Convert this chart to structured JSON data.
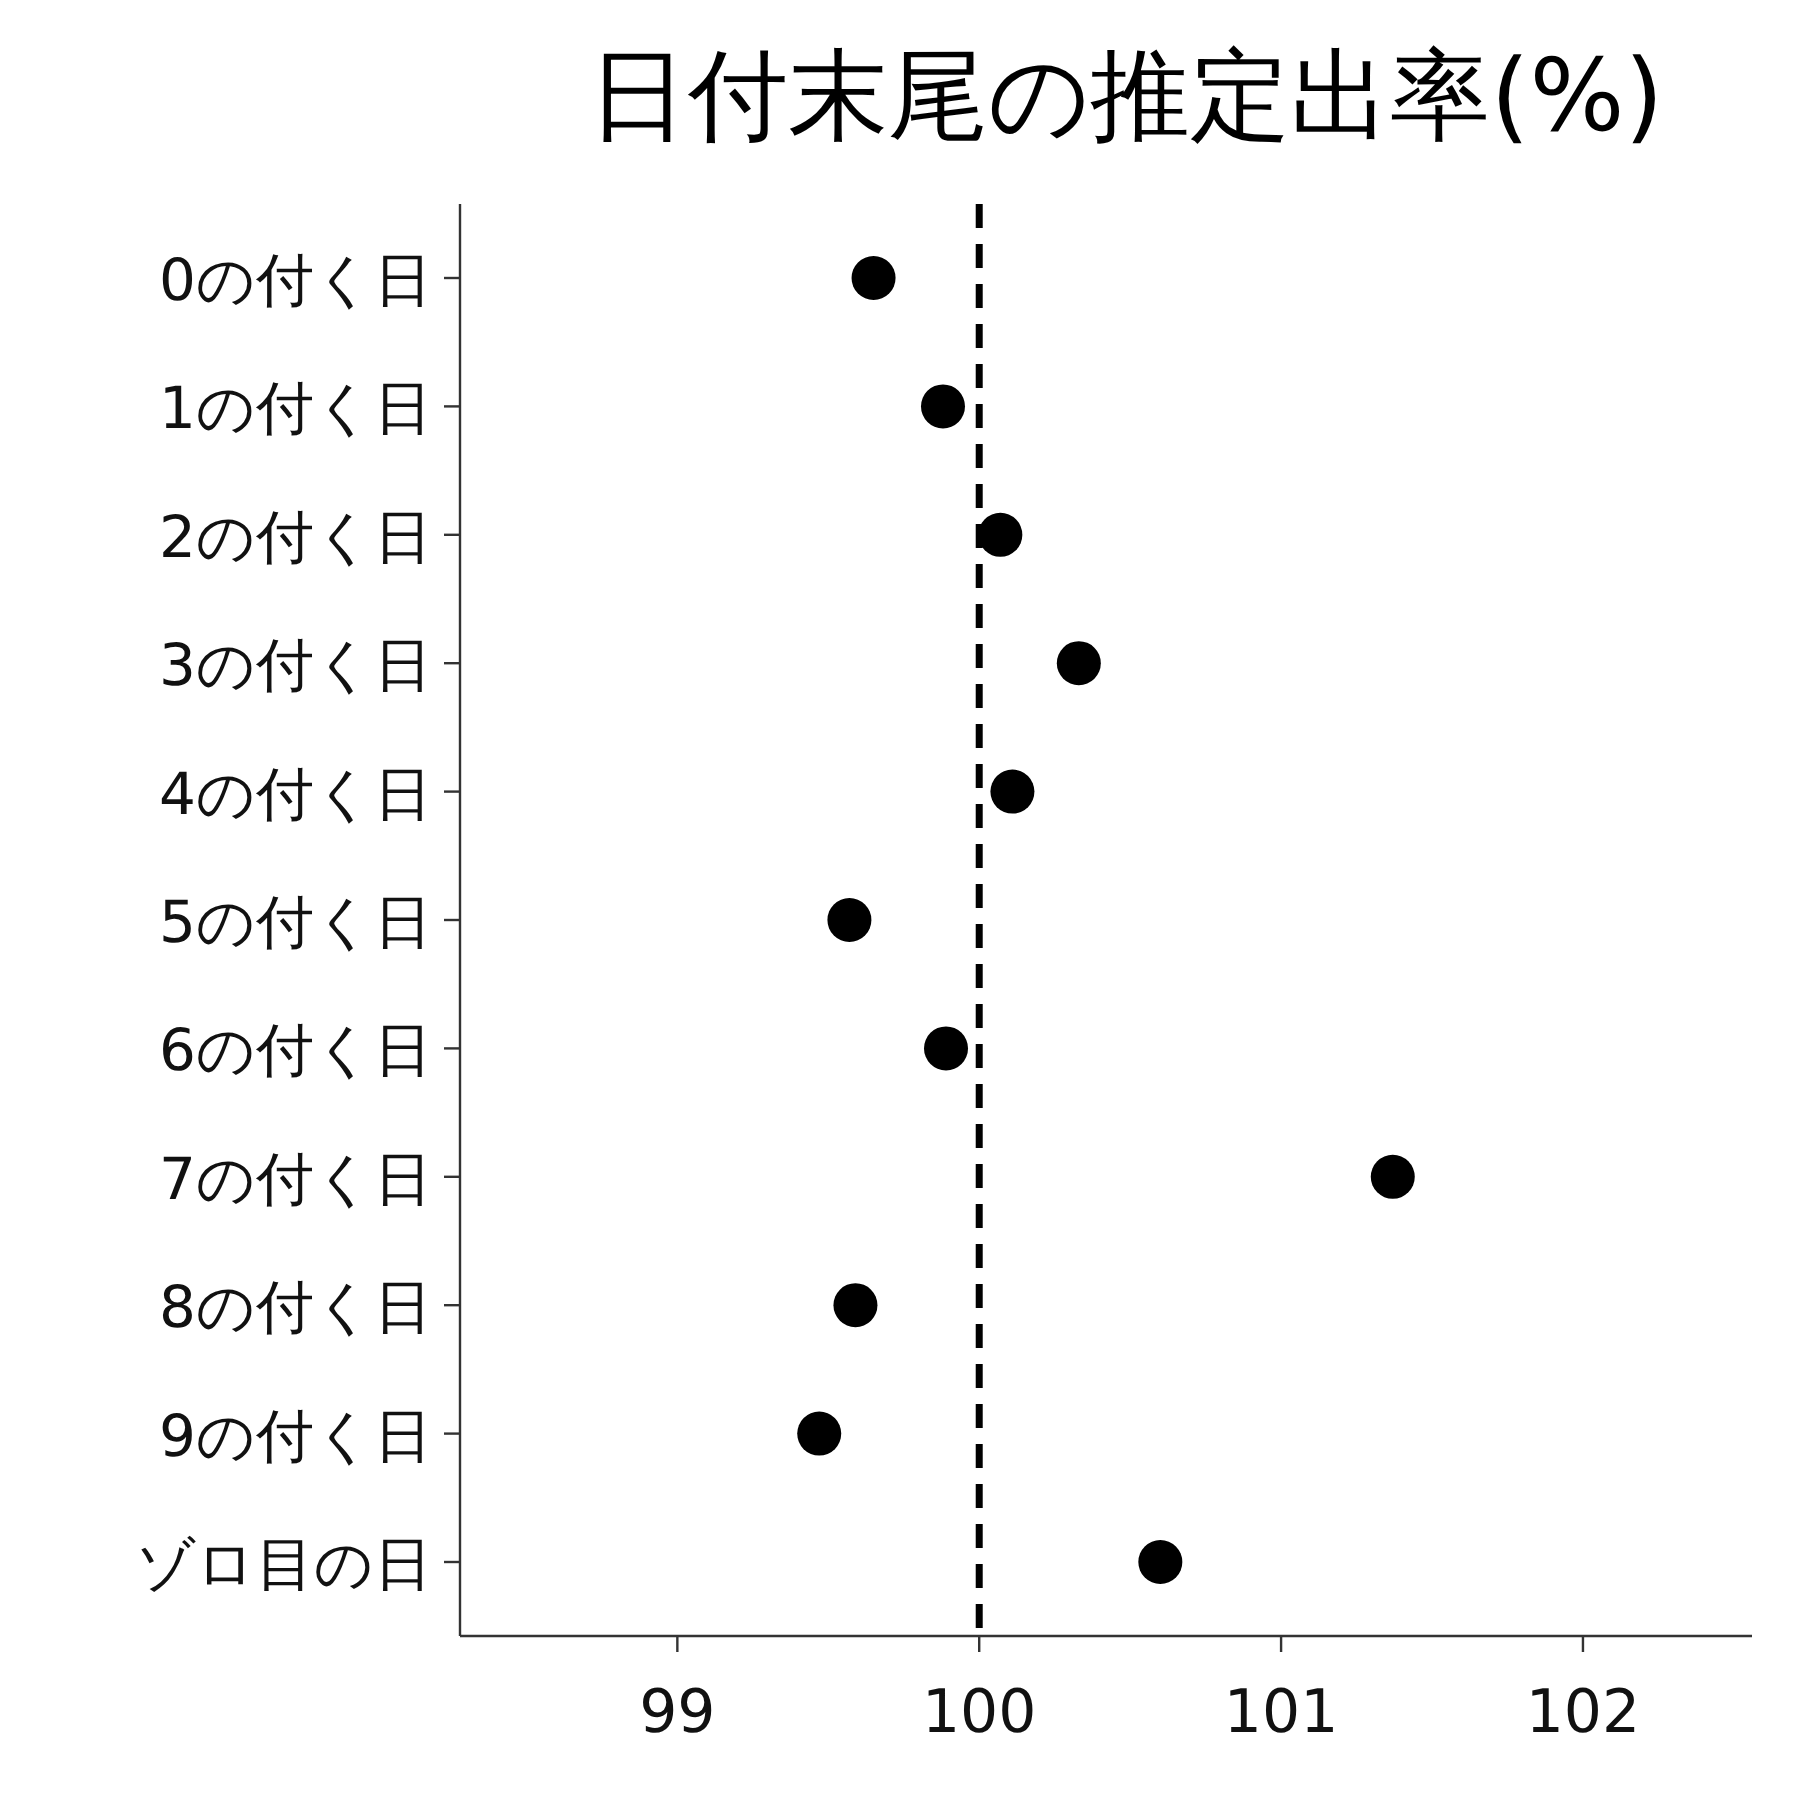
{
  "chart_data": {
    "type": "scatter",
    "title": "日付末尾の推定出率(%)",
    "orientation": "horizontal",
    "categories": [
      "0の付く日",
      "1の付く日",
      "2の付く日",
      "3の付く日",
      "4の付く日",
      "5の付く日",
      "6の付く日",
      "7の付く日",
      "8の付く日",
      "9の付く日",
      "ゾロ目の日"
    ],
    "series": [
      {
        "color": "#000000",
        "values": [
          99.65,
          99.88,
          100.07,
          100.33,
          100.11,
          99.57,
          99.89,
          101.37,
          99.59,
          99.47,
          100.6
        ]
      }
    ],
    "xlim": [
      98.28,
      102.56
    ],
    "xticks": [
      99,
      100,
      101,
      102
    ],
    "ref_lines": [
      {
        "axis": "x",
        "value": 100,
        "color": "#000000",
        "line_style": "dashed"
      }
    ],
    "marker": "circle",
    "grid": false
  }
}
